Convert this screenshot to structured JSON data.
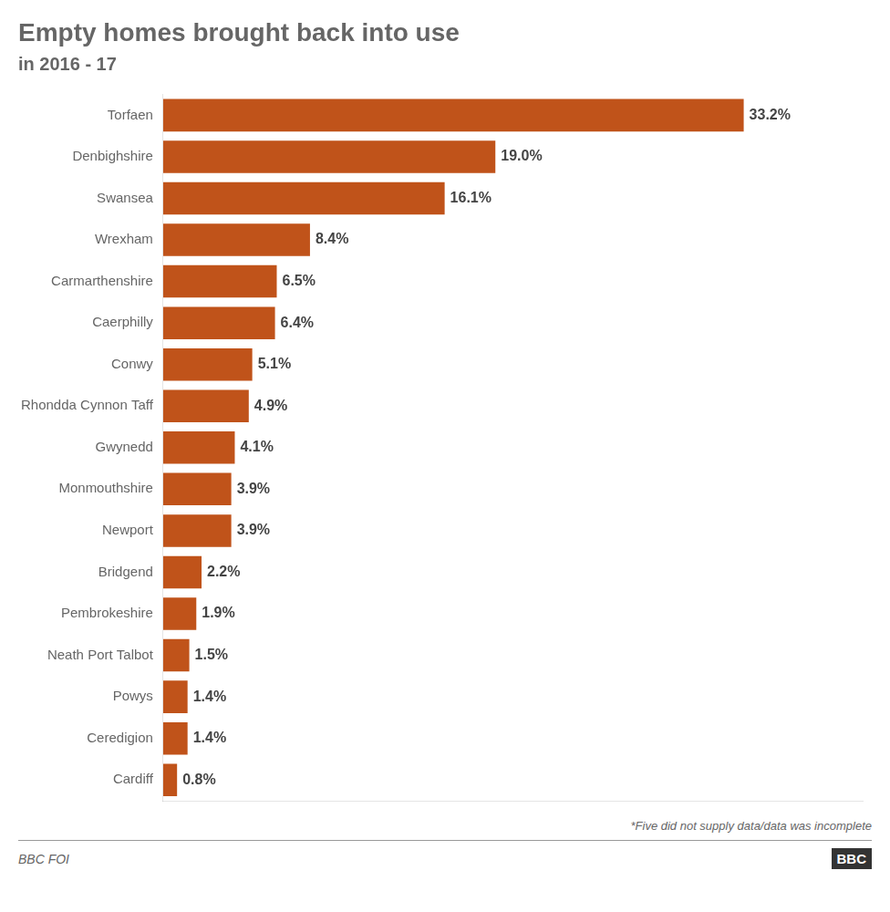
{
  "chart_data": {
    "type": "bar",
    "orientation": "horizontal",
    "title": "Empty homes brought back into use",
    "subtitle": "in 2016 - 17",
    "categories": [
      "Torfaen",
      "Denbighshire",
      "Swansea",
      "Wrexham",
      "Carmarthenshire",
      "Caerphilly",
      "Conwy",
      "Rhondda Cynnon Taff",
      "Gwynedd",
      "Monmouthshire",
      "Newport",
      "Bridgend",
      "Pembrokeshire",
      "Neath Port Talbot",
      "Powys",
      "Ceredigion",
      "Cardiff"
    ],
    "values": [
      33.2,
      19.0,
      16.1,
      8.4,
      6.5,
      6.4,
      5.1,
      4.9,
      4.1,
      3.9,
      3.9,
      2.2,
      1.9,
      1.5,
      1.4,
      1.4,
      0.8
    ],
    "value_labels": [
      "33.2%",
      "19.0%",
      "16.1%",
      "8.4%",
      "6.5%",
      "6.4%",
      "5.1%",
      "4.9%",
      "4.1%",
      "3.9%",
      "3.9%",
      "2.2%",
      "1.9%",
      "1.5%",
      "1.4%",
      "1.4%",
      "0.8%"
    ],
    "color": "#C0531A",
    "xlim": [
      0,
      40
    ],
    "grid": false,
    "data_labels": true,
    "tick_labels": "y",
    "annotations": [
      "*Five did not supply data/data was incomplete",
      "BBC FOI",
      "BBC"
    ]
  }
}
